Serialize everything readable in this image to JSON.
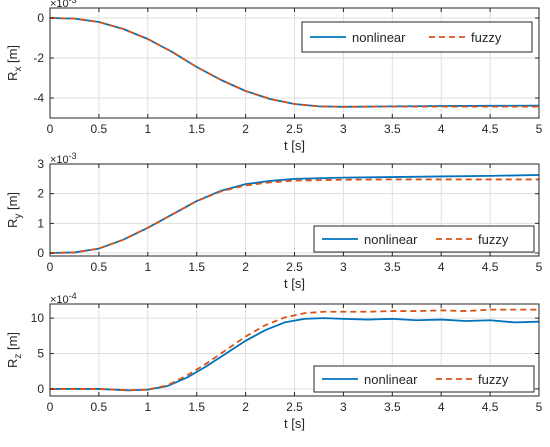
{
  "colors": {
    "nonlinear": "#0072BD",
    "fuzzy": "#D95319"
  },
  "chart_data": [
    {
      "type": "line",
      "xlabel": "t [s]",
      "ylabel": "R",
      "ylabel_sub": "x",
      "ylabel_unit": " [m]",
      "exponent": "×10",
      "exponent_power": "-3",
      "xlim": [
        0,
        5
      ],
      "ylim": [
        -5,
        0.5
      ],
      "xticks": [
        0,
        0.5,
        1,
        1.5,
        2,
        2.5,
        3,
        3.5,
        4,
        4.5,
        5
      ],
      "xtick_labels": [
        "0",
        "0.5",
        "1",
        "1.5",
        "2",
        "2.5",
        "3",
        "3.5",
        "4",
        "4.5",
        "5"
      ],
      "yticks": [
        0,
        -2,
        -4
      ],
      "ytick_labels": [
        "0",
        "-2",
        "-4"
      ],
      "grid": true,
      "legend_placement": "top-right",
      "series": [
        {
          "name": "nonlinear",
          "style": "solid",
          "x": [
            0,
            0.25,
            0.5,
            0.75,
            1,
            1.25,
            1.5,
            1.75,
            2,
            2.25,
            2.5,
            2.75,
            3,
            3.5,
            4,
            4.5,
            5
          ],
          "y": [
            0,
            -0.03,
            -0.2,
            -0.55,
            -1.05,
            -1.7,
            -2.45,
            -3.1,
            -3.65,
            -4.05,
            -4.3,
            -4.42,
            -4.44,
            -4.42,
            -4.4,
            -4.39,
            -4.38
          ]
        },
        {
          "name": "fuzzy",
          "style": "dashed",
          "x": [
            0,
            0.25,
            0.5,
            0.75,
            1,
            1.25,
            1.5,
            1.75,
            2,
            2.25,
            2.5,
            2.75,
            3,
            3.5,
            4,
            4.5,
            5
          ],
          "y": [
            0,
            -0.03,
            -0.2,
            -0.55,
            -1.05,
            -1.7,
            -2.45,
            -3.1,
            -3.65,
            -4.05,
            -4.3,
            -4.42,
            -4.44,
            -4.43,
            -4.43,
            -4.43,
            -4.43
          ]
        }
      ]
    },
    {
      "type": "line",
      "xlabel": "t [s]",
      "ylabel": "R",
      "ylabel_sub": "y",
      "ylabel_unit": " [m]",
      "exponent": "×10",
      "exponent_power": "-3",
      "xlim": [
        0,
        5
      ],
      "ylim": [
        -0.1,
        3
      ],
      "xticks": [
        0,
        0.5,
        1,
        1.5,
        2,
        2.5,
        3,
        3.5,
        4,
        4.5,
        5
      ],
      "xtick_labels": [
        "0",
        "0.5",
        "1",
        "1.5",
        "2",
        "2.5",
        "3",
        "3.5",
        "4",
        "4.5",
        "5"
      ],
      "yticks": [
        0,
        1,
        2,
        3
      ],
      "ytick_labels": [
        "0",
        "1",
        "2",
        "3"
      ],
      "grid": true,
      "legend_placement": "bottom-right",
      "series": [
        {
          "name": "nonlinear",
          "style": "solid",
          "x": [
            0,
            0.25,
            0.5,
            0.75,
            1,
            1.25,
            1.5,
            1.75,
            2,
            2.25,
            2.5,
            3,
            3.5,
            4,
            4.5,
            5
          ],
          "y": [
            0,
            0.02,
            0.15,
            0.45,
            0.85,
            1.3,
            1.75,
            2.1,
            2.32,
            2.43,
            2.5,
            2.54,
            2.56,
            2.58,
            2.6,
            2.63
          ]
        },
        {
          "name": "fuzzy",
          "style": "dashed",
          "x": [
            0,
            0.25,
            0.5,
            0.75,
            1,
            1.25,
            1.5,
            1.75,
            2,
            2.25,
            2.5,
            3,
            3.5,
            4,
            4.5,
            5
          ],
          "y": [
            0,
            0.02,
            0.15,
            0.45,
            0.85,
            1.3,
            1.75,
            2.08,
            2.28,
            2.38,
            2.44,
            2.47,
            2.48,
            2.48,
            2.48,
            2.48
          ]
        }
      ]
    },
    {
      "type": "line",
      "xlabel": "t [s]",
      "ylabel": "R",
      "ylabel_sub": "z",
      "ylabel_unit": " [m]",
      "exponent": "×10",
      "exponent_power": "-4",
      "xlim": [
        0,
        5
      ],
      "ylim": [
        -1,
        12
      ],
      "xticks": [
        0,
        0.5,
        1,
        1.5,
        2,
        2.5,
        3,
        3.5,
        4,
        4.5,
        5
      ],
      "xtick_labels": [
        "0",
        "0.5",
        "1",
        "1.5",
        "2",
        "2.5",
        "3",
        "3.5",
        "4",
        "4.5",
        "5"
      ],
      "yticks": [
        0,
        5,
        10
      ],
      "ytick_labels": [
        "0",
        "5",
        "10"
      ],
      "grid": true,
      "legend_placement": "bottom-right",
      "series": [
        {
          "name": "nonlinear",
          "style": "solid",
          "x": [
            0,
            0.5,
            0.8,
            1,
            1.2,
            1.4,
            1.6,
            1.8,
            2,
            2.2,
            2.4,
            2.6,
            2.8,
            3,
            3.25,
            3.5,
            3.75,
            4,
            4.25,
            4.5,
            4.75,
            5
          ],
          "y": [
            0,
            0,
            -0.2,
            -0.1,
            0.4,
            1.6,
            3.2,
            5,
            6.8,
            8.3,
            9.4,
            9.9,
            10,
            9.9,
            9.8,
            9.9,
            9.7,
            9.8,
            9.6,
            9.7,
            9.4,
            9.5
          ]
        },
        {
          "name": "fuzzy",
          "style": "dashed",
          "x": [
            0,
            0.5,
            0.8,
            1,
            1.2,
            1.4,
            1.6,
            1.8,
            2,
            2.2,
            2.4,
            2.6,
            2.8,
            3,
            3.25,
            3.5,
            3.75,
            4,
            4.25,
            4.5,
            4.75,
            5
          ],
          "y": [
            0,
            0,
            -0.2,
            -0.1,
            0.5,
            1.9,
            3.6,
            5.5,
            7.4,
            9,
            10.1,
            10.7,
            10.9,
            10.9,
            10.9,
            11,
            11,
            11.1,
            11,
            11.2,
            11.2,
            11.2
          ]
        }
      ]
    }
  ]
}
